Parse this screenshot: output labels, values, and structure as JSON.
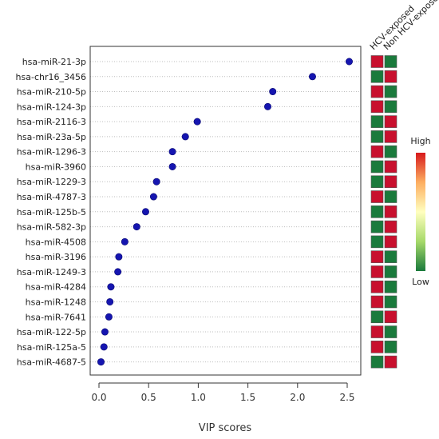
{
  "chart_data": {
    "type": "scatter",
    "xlabel": "VIP scores",
    "xlim": [
      -0.1,
      2.65
    ],
    "xticks": [
      0.0,
      0.5,
      1.0,
      1.5,
      2.0,
      2.5
    ],
    "xtick_labels": [
      "0.0",
      "0.5",
      "1.0",
      "1.5",
      "2.0",
      "2.5"
    ],
    "grid": "horizontal-dotted",
    "point_color": "#1515b0",
    "categories": [
      "hsa-miR-21-3p",
      "hsa-chr16_3456",
      "hsa-miR-210-5p",
      "hsa-miR-124-3p",
      "hsa-miR-2116-3",
      "hsa-miR-23a-5p",
      "hsa-miR-1296-3",
      "hsa-miR-3960",
      "hsa-miR-1229-3",
      "hsa-miR-4787-3",
      "hsa-miR-125b-5",
      "hsa-miR-582-3p",
      "hsa-miR-4508",
      "hsa-miR-3196",
      "hsa-miR-1249-3",
      "hsa-miR-4284",
      "hsa-miR-1248",
      "hsa-miR-7641",
      "hsa-miR-122-5p",
      "hsa-miR-125a-5",
      "hsa-miR-4687-5"
    ],
    "values": [
      2.52,
      2.15,
      1.75,
      1.7,
      0.99,
      0.87,
      0.74,
      0.74,
      0.58,
      0.55,
      0.47,
      0.38,
      0.26,
      0.2,
      0.19,
      0.12,
      0.11,
      0.1,
      0.06,
      0.05,
      0.02
    ],
    "heatmap": {
      "columns": [
        "HCV-exposed",
        "Non HCV-exposed"
      ],
      "levels": [
        [
          "high",
          "low"
        ],
        [
          "low",
          "high"
        ],
        [
          "high",
          "low"
        ],
        [
          "high",
          "low"
        ],
        [
          "low",
          "high"
        ],
        [
          "low",
          "high"
        ],
        [
          "high",
          "low"
        ],
        [
          "low",
          "high"
        ],
        [
          "low",
          "high"
        ],
        [
          "high",
          "low"
        ],
        [
          "low",
          "high"
        ],
        [
          "low",
          "high"
        ],
        [
          "low",
          "high"
        ],
        [
          "high",
          "low"
        ],
        [
          "high",
          "low"
        ],
        [
          "high",
          "low"
        ],
        [
          "high",
          "low"
        ],
        [
          "low",
          "high"
        ],
        [
          "high",
          "low"
        ],
        [
          "high",
          "low"
        ],
        [
          "low",
          "high"
        ]
      ],
      "colors": {
        "high": "#c8102e",
        "low": "#1a7a3c"
      }
    },
    "legend": {
      "high_label": "High",
      "low_label": "Low",
      "gradient": [
        "#d7191c",
        "#fdae61",
        "#ffffbf",
        "#a6d96a",
        "#1a7a3c"
      ],
      "placement": "right"
    }
  }
}
